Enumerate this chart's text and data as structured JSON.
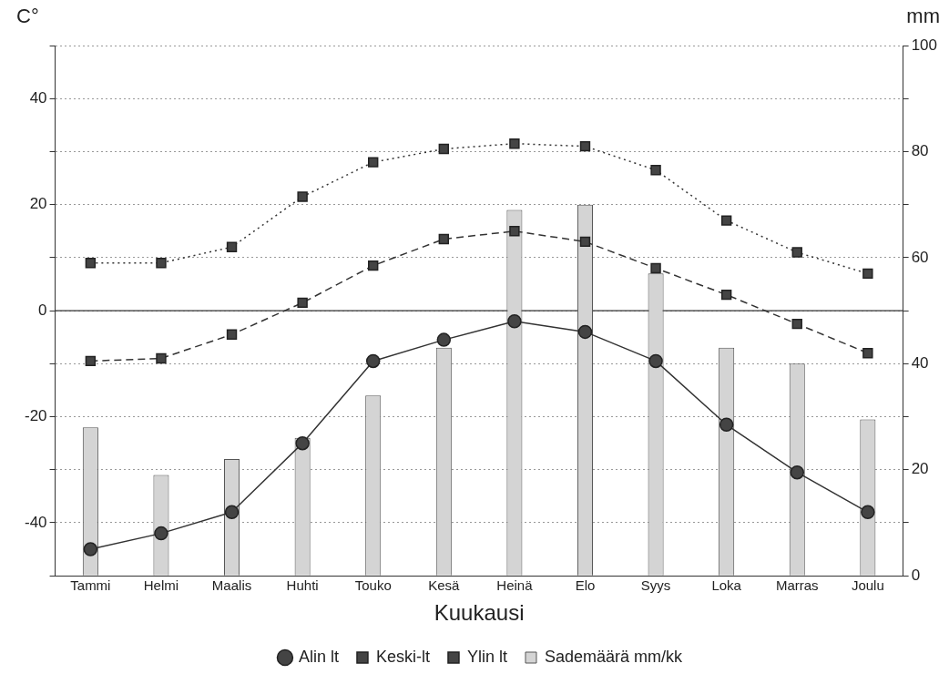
{
  "chart_data": {
    "type": "line",
    "xlabel": "Kuukausi",
    "ylabel": "C°",
    "y2label": "mm",
    "categories": [
      "Tammi",
      "Helmi",
      "Maalis",
      "Huhti",
      "Touko",
      "Kesä",
      "Heinä",
      "Elo",
      "Syys",
      "Loka",
      "Marras",
      "Joulu"
    ],
    "series": [
      {
        "name": "Alin lt",
        "color": "#333333",
        "marker": "circle",
        "line_style": "solid",
        "values": [
          -45,
          -42,
          -38,
          -25,
          -9.5,
          -5.5,
          -2,
          -4,
          -9.5,
          -21.5,
          -30.5,
          -38
        ]
      },
      {
        "name": "Keski-lt",
        "color": "#333333",
        "marker": "square",
        "line_style": "dashed",
        "values": [
          -9.5,
          -9,
          -4.5,
          1.5,
          8.5,
          13.5,
          15,
          13,
          8,
          3,
          -2.5,
          -8
        ]
      },
      {
        "name": "Ylin lt",
        "color": "#333333",
        "marker": "square",
        "line_style": "dotted",
        "values": [
          9,
          9,
          12,
          21.5,
          28,
          30.5,
          31.5,
          31,
          26.5,
          17,
          11,
          7
        ]
      },
      {
        "name": "Sademäärä mm/kk",
        "color": "#d4d4d4",
        "type": "bar",
        "axis": "y2",
        "values": [
          28,
          19,
          22,
          26,
          34,
          43,
          69,
          70,
          57,
          43,
          40,
          29.5
        ]
      }
    ],
    "ylim": [
      -50,
      50
    ],
    "yticks": [
      {
        "value": -50,
        "label": null
      },
      -40,
      {
        "value": -30,
        "label": null
      },
      -20,
      {
        "value": -10,
        "label": null
      },
      0,
      {
        "value": 10,
        "label": null
      },
      20,
      {
        "value": 30,
        "label": null
      },
      40,
      {
        "value": 50,
        "label": null
      }
    ],
    "y2lim": [
      0,
      100
    ],
    "y2ticks": [
      0,
      {
        "value": 10,
        "label": null
      },
      20,
      {
        "value": 30,
        "label": null
      },
      40,
      {
        "value": 50,
        "label": null
      },
      60,
      {
        "value": 70,
        "label": null
      },
      80,
      {
        "value": 90,
        "label": null
      },
      100
    ],
    "ref_lines": [
      {
        "axis": "y",
        "value": 0,
        "color": "#333333",
        "line_style": "solid"
      }
    ],
    "grid": "y",
    "legend": "bottom"
  }
}
